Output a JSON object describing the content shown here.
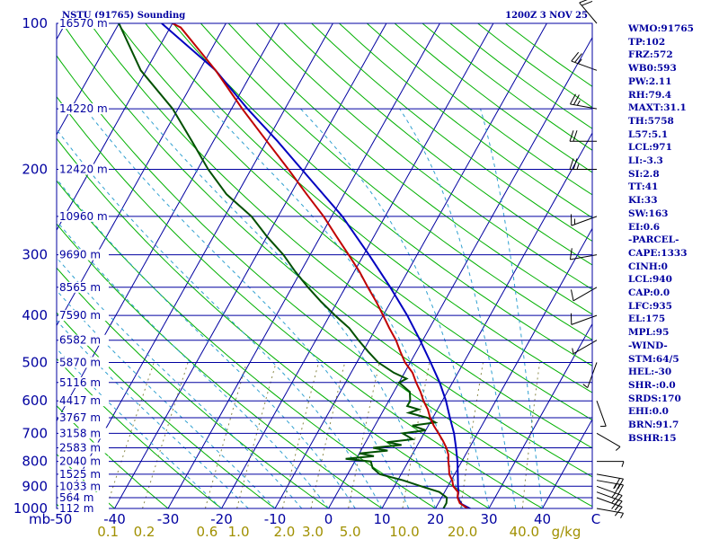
{
  "header": {
    "station": "NSTU (91765) Sounding",
    "valid": "1200Z  3 NOV 25"
  },
  "indices": [
    "WMO:91765",
    "TP:102",
    "FRZ:572",
    "WB0:593",
    "PW:2.11",
    "RH:79.4",
    "MAXT:31.1",
    "TH:5758",
    "L57:5.1",
    "LCL:971",
    "LI:-3.3",
    "SI:2.8",
    "TT:41",
    "KI:33",
    "SW:163",
    "EI:0.6",
    "-PARCEL-",
    "CAPE:1333",
    "CINH:0",
    "LCL:940",
    "CAP:0.0",
    "LFC:935",
    "EL:175",
    "MPL:95",
    "-WIND-",
    "STM:64/5",
    "HEL:-30",
    "SHR-:0.0",
    "SRDS:170",
    "EHI:0.0",
    "BRN:91.7",
    "BSHR:15"
  ],
  "colors": {
    "frame": "#0000a0",
    "isobar": "#0000a0",
    "isotherm": "#0000a0",
    "dry_adiabat": "#00b000",
    "moist_adiabat": "#30a0d0",
    "mixing_ratio": "#8a8a4a",
    "temperature": "#c00000",
    "dewpoint": "#005000",
    "parcel": "#0000c0",
    "wind_barb": "#000000",
    "mixing_label": "#a09000"
  },
  "chart_data": {
    "type": "skew-t",
    "title": "NSTU (91765) Sounding",
    "valid_time": "1200Z  3 NOV 25",
    "xlabel": "°C",
    "ylabel": "mb",
    "x_units_label": "mb",
    "xlim": [
      -50,
      50
    ],
    "ylim": [
      1000,
      100
    ],
    "pressure_ticks": [
      {
        "p": 100,
        "label": "100"
      },
      {
        "p": 200,
        "label": "200"
      },
      {
        "p": 300,
        "label": "300"
      },
      {
        "p": 400,
        "label": "400"
      },
      {
        "p": 500,
        "label": "500"
      },
      {
        "p": 600,
        "label": "600"
      },
      {
        "p": 700,
        "label": "700"
      },
      {
        "p": 800,
        "label": "800"
      },
      {
        "p": 900,
        "label": "900"
      },
      {
        "p": 1000,
        "label": "1000"
      }
    ],
    "temperature_ticks": [
      {
        "t": -50,
        "label": "-50"
      },
      {
        "t": -40,
        "label": "-40"
      },
      {
        "t": -30,
        "label": "-30"
      },
      {
        "t": -20,
        "label": "-20"
      },
      {
        "t": -10,
        "label": "-10"
      },
      {
        "t": 0,
        "label": "0"
      },
      {
        "t": 10,
        "label": "10"
      },
      {
        "t": 20,
        "label": "20"
      },
      {
        "t": 30,
        "label": "30"
      },
      {
        "t": 40,
        "label": "40"
      },
      {
        "t": 50,
        "label": "C"
      }
    ],
    "mixing_ratio_labels": [
      {
        "w": 0.1,
        "label": "0.1"
      },
      {
        "w": 0.2,
        "label": "0.2"
      },
      {
        "w": 0.6,
        "label": "0.6"
      },
      {
        "w": 1.0,
        "label": "1.0"
      },
      {
        "w": 2.0,
        "label": "2.0"
      },
      {
        "w": 3.0,
        "label": "3.0"
      },
      {
        "w": 5.0,
        "label": "5.0"
      },
      {
        "w": 10.0,
        "label": "10.0"
      },
      {
        "w": 20.0,
        "label": "20.0"
      },
      {
        "w": 40.0,
        "label": "40.0"
      }
    ],
    "mixing_ratio_unit": "g/kg",
    "height_levels": [
      {
        "p": 100,
        "label": "16570 m"
      },
      {
        "p": 150,
        "label": "14220 m"
      },
      {
        "p": 200,
        "label": "12420 m"
      },
      {
        "p": 250,
        "label": "10960 m"
      },
      {
        "p": 300,
        "label": "9690 m"
      },
      {
        "p": 350,
        "label": "8565 m"
      },
      {
        "p": 400,
        "label": "7590 m"
      },
      {
        "p": 450,
        "label": "6582 m"
      },
      {
        "p": 500,
        "label": "5870 m"
      },
      {
        "p": 550,
        "label": "5116 m"
      },
      {
        "p": 600,
        "label": "4417 m"
      },
      {
        "p": 650,
        "label": "3767 m"
      },
      {
        "p": 700,
        "label": "3158 m"
      },
      {
        "p": 750,
        "label": "2583 m"
      },
      {
        "p": 800,
        "label": "2040 m"
      },
      {
        "p": 850,
        "label": "1525 m"
      },
      {
        "p": 900,
        "label": "1033 m"
      },
      {
        "p": 950,
        "label": "564 m"
      },
      {
        "p": 1000,
        "label": "112 m"
      }
    ],
    "temperature": [
      [
        1006,
        27.0
      ],
      [
        1000,
        26.0
      ],
      [
        975,
        24.0
      ],
      [
        950,
        23.0
      ],
      [
        925,
        22.5
      ],
      [
        900,
        21.0
      ],
      [
        875,
        20.2
      ],
      [
        850,
        19.0
      ],
      [
        825,
        18.3
      ],
      [
        800,
        17.5
      ],
      [
        775,
        16.8
      ],
      [
        750,
        15.7
      ],
      [
        725,
        14.3
      ],
      [
        700,
        12.7
      ],
      [
        675,
        11.0
      ],
      [
        650,
        9.5
      ],
      [
        625,
        8.2
      ],
      [
        600,
        6.5
      ],
      [
        575,
        5.0
      ],
      [
        550,
        3.2
      ],
      [
        525,
        1.5
      ],
      [
        500,
        -1.0
      ],
      [
        475,
        -3.0
      ],
      [
        450,
        -5.0
      ],
      [
        425,
        -7.5
      ],
      [
        400,
        -10.0
      ],
      [
        375,
        -12.7
      ],
      [
        350,
        -15.8
      ],
      [
        325,
        -19.0
      ],
      [
        300,
        -22.8
      ],
      [
        275,
        -27.0
      ],
      [
        250,
        -31.5
      ],
      [
        225,
        -37.0
      ],
      [
        200,
        -43.0
      ],
      [
        175,
        -50.0
      ],
      [
        150,
        -58.0
      ],
      [
        125,
        -67.0
      ],
      [
        102,
        -78.0
      ],
      [
        100,
        -80.0
      ]
    ],
    "dewpoint": [
      [
        1006,
        22.0
      ],
      [
        1000,
        21.5
      ],
      [
        975,
        21.5
      ],
      [
        950,
        21.0
      ],
      [
        925,
        19.0
      ],
      [
        900,
        15.0
      ],
      [
        875,
        11.0
      ],
      [
        850,
        6.0
      ],
      [
        825,
        4.0
      ],
      [
        800,
        3.0
      ],
      [
        790,
        -2.0
      ],
      [
        780,
        3.0
      ],
      [
        770,
        0.0
      ],
      [
        760,
        5.0
      ],
      [
        750,
        2.0
      ],
      [
        740,
        7.0
      ],
      [
        730,
        4.0
      ],
      [
        720,
        8.5
      ],
      [
        700,
        6.0
      ],
      [
        690,
        10.0
      ],
      [
        675,
        7.0
      ],
      [
        665,
        11.0
      ],
      [
        650,
        9.0
      ],
      [
        635,
        5.0
      ],
      [
        625,
        6.5
      ],
      [
        615,
        4.0
      ],
      [
        600,
        4.0
      ],
      [
        575,
        3.0
      ],
      [
        550,
        0.0
      ],
      [
        540,
        1.0
      ],
      [
        525,
        -2.0
      ],
      [
        500,
        -6.0
      ],
      [
        475,
        -9.0
      ],
      [
        450,
        -12.0
      ],
      [
        425,
        -15.0
      ],
      [
        400,
        -19.0
      ],
      [
        375,
        -23.0
      ],
      [
        350,
        -27.0
      ],
      [
        325,
        -31.0
      ],
      [
        300,
        -35.0
      ],
      [
        275,
        -40.0
      ],
      [
        250,
        -45.0
      ],
      [
        225,
        -52.0
      ],
      [
        200,
        -58.0
      ],
      [
        175,
        -64.0
      ],
      [
        150,
        -71.0
      ],
      [
        125,
        -81.0
      ],
      [
        100,
        -90.0
      ]
    ],
    "parcel": [
      [
        1006,
        27.0
      ],
      [
        980,
        24.5
      ],
      [
        950,
        23.0
      ],
      [
        925,
        22.6
      ],
      [
        900,
        21.9
      ],
      [
        850,
        20.6
      ],
      [
        800,
        19.2
      ],
      [
        750,
        17.5
      ],
      [
        700,
        15.6
      ],
      [
        650,
        13.2
      ],
      [
        600,
        10.7
      ],
      [
        550,
        7.6
      ],
      [
        500,
        3.8
      ],
      [
        450,
        -0.5
      ],
      [
        400,
        -5.5
      ],
      [
        350,
        -11.6
      ],
      [
        300,
        -19.0
      ],
      [
        250,
        -28.0
      ],
      [
        200,
        -40.5
      ],
      [
        175,
        -48.0
      ],
      [
        150,
        -57.0
      ],
      [
        125,
        -67.0
      ],
      [
        100,
        -82.0
      ]
    ],
    "wind": [
      {
        "p": 1000,
        "dir": 100,
        "spd": 5
      },
      {
        "p": 950,
        "dir": 110,
        "spd": 15
      },
      {
        "p": 925,
        "dir": 110,
        "spd": 20
      },
      {
        "p": 900,
        "dir": 110,
        "spd": 25
      },
      {
        "p": 875,
        "dir": 100,
        "spd": 25
      },
      {
        "p": 850,
        "dir": 100,
        "spd": 20
      },
      {
        "p": 800,
        "dir": 90,
        "spd": 5
      },
      {
        "p": 700,
        "dir": 120,
        "spd": 5
      },
      {
        "p": 600,
        "dir": 160,
        "spd": 5
      },
      {
        "p": 500,
        "dir": 200,
        "spd": 5
      },
      {
        "p": 450,
        "dir": 240,
        "spd": 5
      },
      {
        "p": 400,
        "dir": 250,
        "spd": 10
      },
      {
        "p": 350,
        "dir": 240,
        "spd": 10
      },
      {
        "p": 300,
        "dir": 260,
        "spd": 10
      },
      {
        "p": 250,
        "dir": 250,
        "spd": 15
      },
      {
        "p": 200,
        "dir": 270,
        "spd": 25
      },
      {
        "p": 175,
        "dir": 270,
        "spd": 20
      },
      {
        "p": 150,
        "dir": 280,
        "spd": 25
      },
      {
        "p": 125,
        "dir": 290,
        "spd": 25
      },
      {
        "p": 100,
        "dir": 320,
        "spd": 20
      }
    ]
  }
}
